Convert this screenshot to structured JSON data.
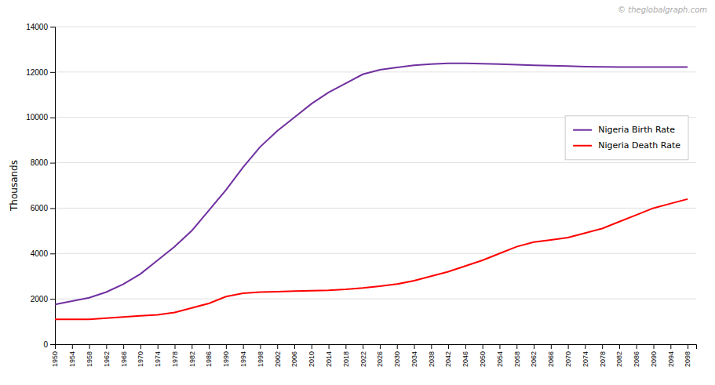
{
  "chart_data": {
    "type": "line",
    "ylabel": "Thousands",
    "annotations": [
      {
        "text": "© theglobalgraph.com"
      }
    ],
    "x": [
      1950,
      1954,
      1958,
      1962,
      1966,
      1970,
      1974,
      1978,
      1982,
      1986,
      1990,
      1994,
      1998,
      2002,
      2006,
      2010,
      2014,
      2018,
      2022,
      2026,
      2030,
      2034,
      2038,
      2042,
      2046,
      2050,
      2054,
      2058,
      2062,
      2066,
      2070,
      2074,
      2078,
      2082,
      2086,
      2090,
      2094,
      2098
    ],
    "series": [
      {
        "name": "Nigeria Birth Rate",
        "color": "#7030A0",
        "values": [
          1750,
          1900,
          2050,
          2300,
          2650,
          3100,
          3700,
          4300,
          5000,
          5900,
          6800,
          7800,
          8700,
          9400,
          10000,
          10600,
          11100,
          11500,
          11900,
          12100,
          12200,
          12300,
          12350,
          12380,
          12380,
          12370,
          12350,
          12320,
          12300,
          12280,
          12260,
          12240,
          12230,
          12220,
          12220,
          12220,
          12220,
          12220
        ]
      },
      {
        "name": "Nigeria Death Rate",
        "color": "#FF0000",
        "values": [
          1100,
          1100,
          1100,
          1150,
          1200,
          1250,
          1300,
          1400,
          1600,
          1800,
          2100,
          2250,
          2300,
          2320,
          2340,
          2360,
          2380,
          2420,
          2480,
          2560,
          2650,
          2800,
          3000,
          3200,
          3450,
          3700,
          4000,
          4300,
          4500,
          4600,
          4700,
          4900,
          5100,
          5400,
          5700,
          6000,
          6200,
          6400
        ]
      }
    ],
    "xlim": [
      1950,
      2100
    ],
    "xticks": [
      1950,
      1954,
      1958,
      1962,
      1966,
      1970,
      1974,
      1978,
      1982,
      1986,
      1990,
      1994,
      1998,
      2002,
      2006,
      2010,
      2014,
      2018,
      2022,
      2026,
      2030,
      2034,
      2038,
      2042,
      2046,
      2050,
      2054,
      2058,
      2062,
      2066,
      2070,
      2074,
      2078,
      2082,
      2086,
      2090,
      2094,
      2098
    ],
    "ylim": [
      0,
      14000
    ],
    "yticks": [
      0,
      2000,
      4000,
      6000,
      8000,
      10000,
      12000,
      14000
    ],
    "grid": true,
    "legend": "right"
  }
}
